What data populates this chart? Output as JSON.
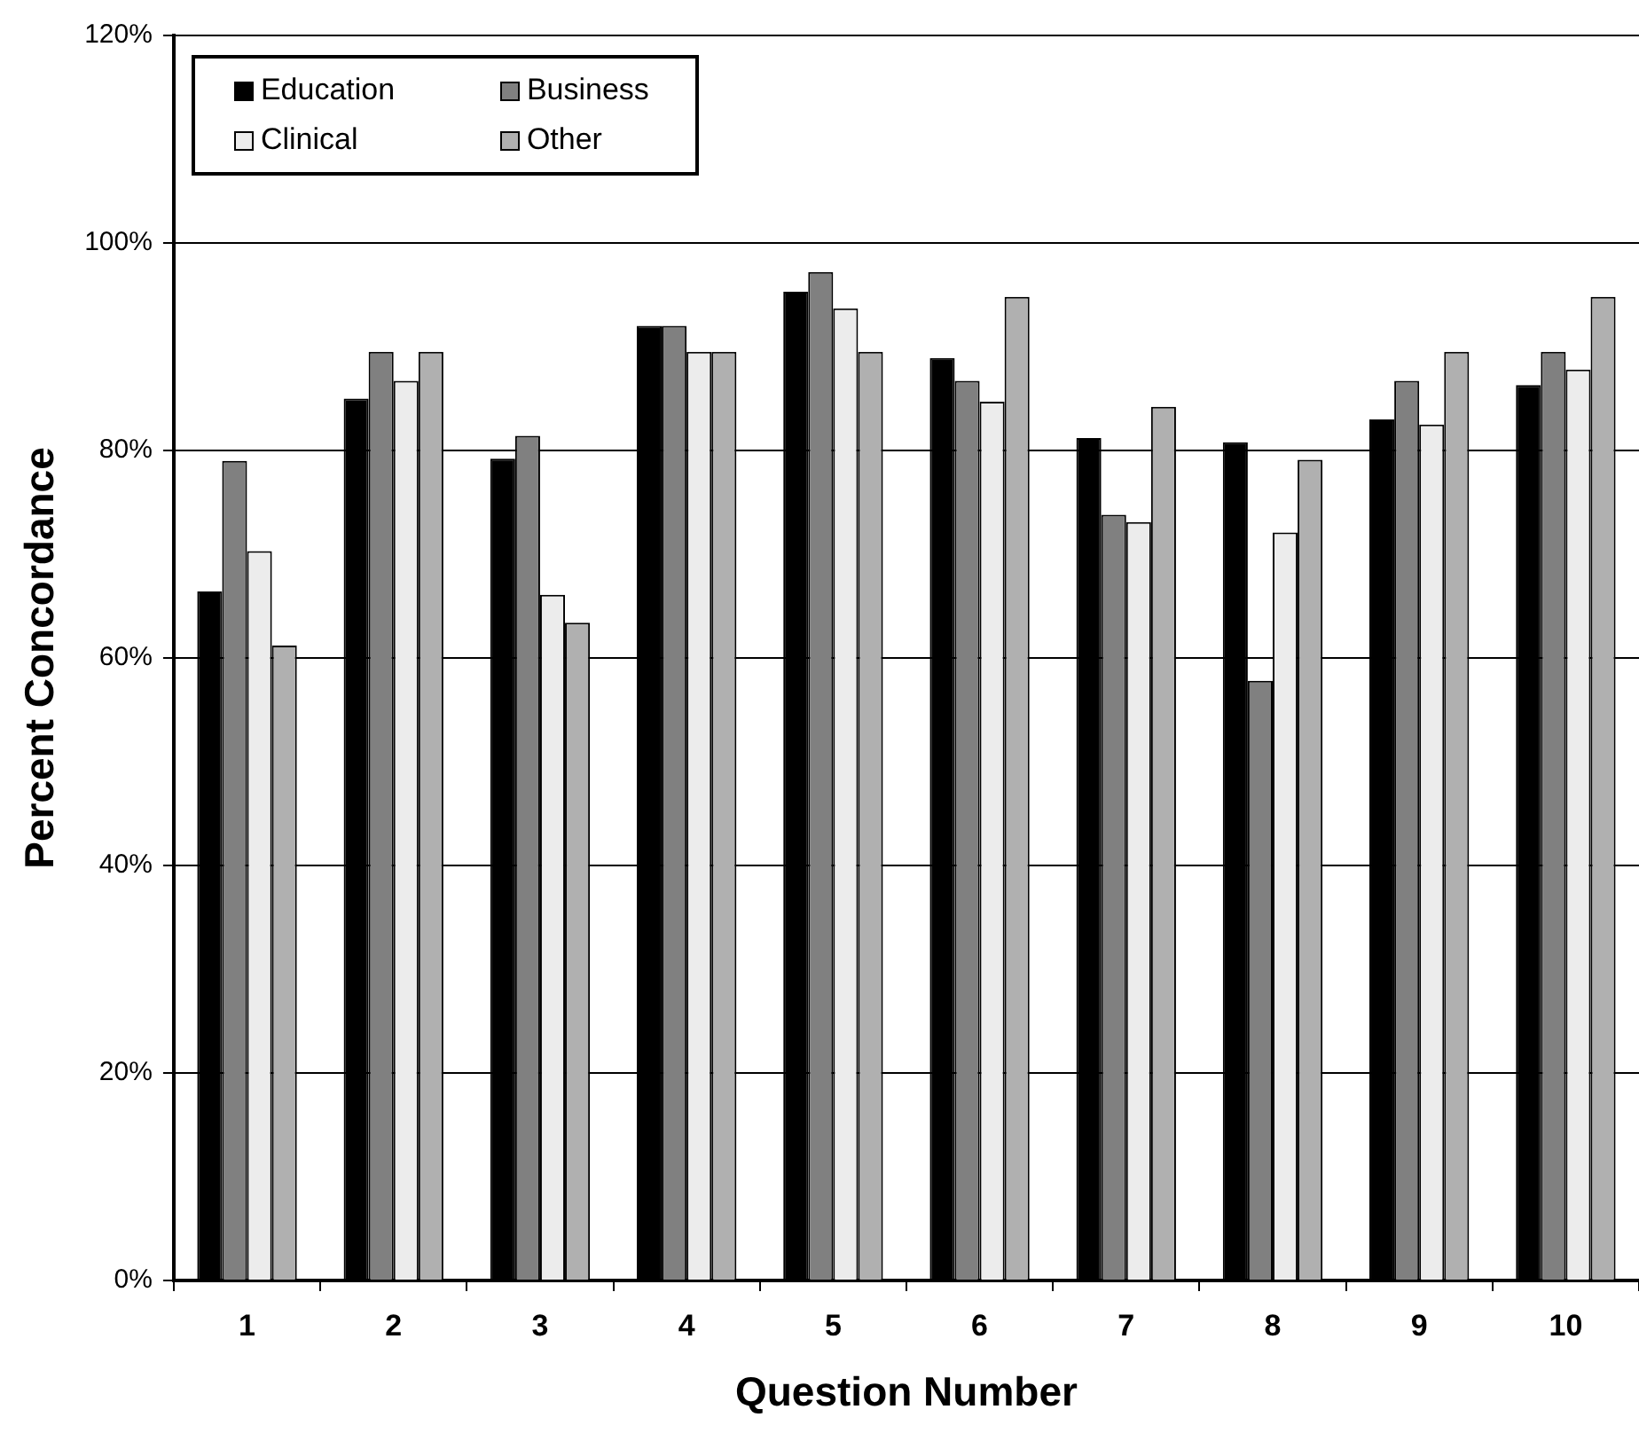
{
  "chart_data": {
    "type": "bar",
    "xlabel": "Question Number",
    "ylabel": "Percent Concordance",
    "categories": [
      "1",
      "2",
      "3",
      "4",
      "5",
      "6",
      "7",
      "8",
      "9",
      "10"
    ],
    "series": [
      {
        "name": "Education",
        "color": "#000000",
        "values": [
          66.4,
          85,
          79.2,
          92,
          95.3,
          88.9,
          81.2,
          80.8,
          83,
          86.3
        ]
      },
      {
        "name": "Business",
        "color": "#808080",
        "values": [
          79,
          89.5,
          81.4,
          92,
          97.2,
          86.7,
          73.8,
          57.8,
          86.7,
          89.5
        ]
      },
      {
        "name": "Clinical",
        "color": "#ececec",
        "values": [
          70.3,
          86.7,
          66.1,
          89.5,
          93.7,
          84.7,
          73.1,
          72.1,
          82.5,
          87.8
        ]
      },
      {
        "name": "Other",
        "color": "#b0b0b0",
        "values": [
          61.2,
          89.5,
          63.4,
          89.5,
          89.5,
          94.8,
          84.2,
          79.1,
          89.5,
          94.8
        ]
      }
    ],
    "ylim": [
      0,
      120
    ],
    "yticks": [
      {
        "value": 0,
        "label": "0%"
      },
      {
        "value": 20,
        "label": "20%"
      },
      {
        "value": 40,
        "label": "40%"
      },
      {
        "value": 60,
        "label": "60%"
      },
      {
        "value": 80,
        "label": "80%"
      },
      {
        "value": 100,
        "label": "100%"
      },
      {
        "value": 120,
        "label": "120%"
      }
    ],
    "grid": "y",
    "legend": "top left"
  }
}
